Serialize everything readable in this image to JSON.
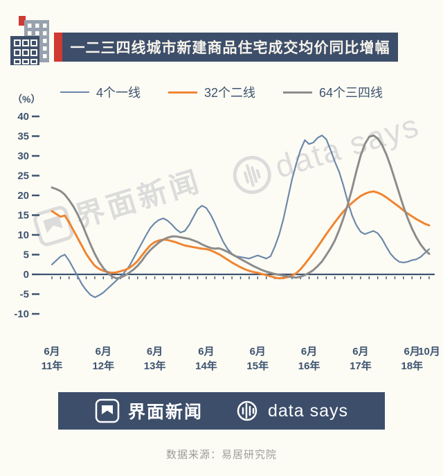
{
  "palette": {
    "background": "#fdfcf4",
    "navy": "#3d4e6a",
    "red": "#cf3a32",
    "axis": "#3d5370",
    "watermark": "#dcdcdc",
    "source_text": "#9b9b9b"
  },
  "header": {
    "title": "一二三四线城市新建商品住宅成交均价同比增幅"
  },
  "legend": [
    {
      "label": "4个一线",
      "color": "#6b88ab"
    },
    {
      "label": "32个二线",
      "color": "#ef8532"
    },
    {
      "label": "64个三四线",
      "color": "#8c8c8c"
    }
  ],
  "watermarks": {
    "jiemian": "界面新闻",
    "datasays": "data says"
  },
  "footer": {
    "brand": "界面新闻",
    "datasays": "data says"
  },
  "source": {
    "text": "数据来源：易居研究院"
  },
  "chart_data": {
    "type": "line",
    "title": "一二三四线城市新建商品住宅成交均价同比增幅",
    "unit_label": "（%）",
    "ylabel": "（%）",
    "ylim": [
      -10,
      40
    ],
    "ytick_step": 5,
    "x_unit": "months since Jun-2011",
    "x_ticks": [
      {
        "month": 0,
        "line1": "6月",
        "line2": "11年"
      },
      {
        "month": 12,
        "line1": "6月",
        "line2": "12年"
      },
      {
        "month": 24,
        "line1": "6月",
        "line2": "13年"
      },
      {
        "month": 36,
        "line1": "6月",
        "line2": "14年"
      },
      {
        "month": 48,
        "line1": "6月",
        "line2": "15年"
      },
      {
        "month": 60,
        "line1": "6月",
        "line2": "16年"
      },
      {
        "month": 72,
        "line1": "6月",
        "line2": "17年"
      },
      {
        "month": 84,
        "line1": "6月",
        "line2": "18年"
      },
      {
        "month": 88,
        "line1": "10月",
        "line2": ""
      }
    ],
    "series": [
      {
        "name": "4个一线",
        "color": "#6b88ab",
        "stroke_width": 2.2,
        "points": [
          [
            0,
            2.5
          ],
          [
            1,
            3.5
          ],
          [
            2,
            4.5
          ],
          [
            3,
            5
          ],
          [
            4,
            3.5
          ],
          [
            5,
            1.5
          ],
          [
            6,
            -0.5
          ],
          [
            7,
            -2.5
          ],
          [
            8,
            -4
          ],
          [
            9,
            -5.2
          ],
          [
            10,
            -5.8
          ],
          [
            11,
            -5.3
          ],
          [
            12,
            -4.6
          ],
          [
            13,
            -3.6
          ],
          [
            14,
            -2.6
          ],
          [
            15,
            -1.6
          ],
          [
            16,
            -0.6
          ],
          [
            17,
            0.6
          ],
          [
            18,
            2
          ],
          [
            19,
            4
          ],
          [
            20,
            6
          ],
          [
            21,
            8
          ],
          [
            22,
            10
          ],
          [
            23,
            11.8
          ],
          [
            24,
            13
          ],
          [
            25,
            13.8
          ],
          [
            26,
            14.2
          ],
          [
            27,
            13.6
          ],
          [
            28,
            12.6
          ],
          [
            29,
            11.4
          ],
          [
            30,
            10.6
          ],
          [
            31,
            11
          ],
          [
            32,
            12.5
          ],
          [
            33,
            14.5
          ],
          [
            34,
            16.5
          ],
          [
            35,
            17.4
          ],
          [
            36,
            16.8
          ],
          [
            37,
            15.2
          ],
          [
            38,
            13
          ],
          [
            39,
            10.5
          ],
          [
            40,
            8.2
          ],
          [
            41,
            6.4
          ],
          [
            42,
            5.2
          ],
          [
            43,
            4.6
          ],
          [
            44,
            4.4
          ],
          [
            45,
            4.2
          ],
          [
            46,
            4
          ],
          [
            47,
            4.4
          ],
          [
            48,
            4.8
          ],
          [
            49,
            4.4
          ],
          [
            50,
            4
          ],
          [
            51,
            4.6
          ],
          [
            52,
            7
          ],
          [
            53,
            10
          ],
          [
            54,
            14
          ],
          [
            55,
            19
          ],
          [
            56,
            24
          ],
          [
            57,
            28
          ],
          [
            58,
            31.5
          ],
          [
            59,
            34
          ],
          [
            60,
            33
          ],
          [
            61,
            33.4
          ],
          [
            62,
            34.6
          ],
          [
            63,
            35.2
          ],
          [
            64,
            34.2
          ],
          [
            65,
            31.5
          ],
          [
            66,
            28.5
          ],
          [
            67,
            26
          ],
          [
            68,
            22.5
          ],
          [
            69,
            18.5
          ],
          [
            70,
            15
          ],
          [
            71,
            12.5
          ],
          [
            72,
            10.8
          ],
          [
            73,
            10.2
          ],
          [
            74,
            10.6
          ],
          [
            75,
            11
          ],
          [
            76,
            10.4
          ],
          [
            77,
            9
          ],
          [
            78,
            7
          ],
          [
            79,
            5.2
          ],
          [
            80,
            4
          ],
          [
            81,
            3.2
          ],
          [
            82,
            3
          ],
          [
            83,
            3.2
          ],
          [
            84,
            3.6
          ],
          [
            85,
            3.8
          ],
          [
            86,
            4.4
          ],
          [
            87,
            5.4
          ],
          [
            88,
            6.4
          ]
        ]
      },
      {
        "name": "32个二线",
        "color": "#ef8532",
        "stroke_width": 3,
        "points": [
          [
            0,
            16
          ],
          [
            1,
            15.3
          ],
          [
            2,
            14.6
          ],
          [
            3,
            14.9
          ],
          [
            4,
            13.2
          ],
          [
            5,
            11.2
          ],
          [
            6,
            9.2
          ],
          [
            7,
            7.2
          ],
          [
            8,
            5.2
          ],
          [
            9,
            3.6
          ],
          [
            10,
            2.2
          ],
          [
            11,
            1.4
          ],
          [
            12,
            0.9
          ],
          [
            13,
            0.6
          ],
          [
            14,
            0.4
          ],
          [
            15,
            0.5
          ],
          [
            16,
            0.8
          ],
          [
            17,
            1.1
          ],
          [
            18,
            1.6
          ],
          [
            19,
            2.4
          ],
          [
            20,
            3.4
          ],
          [
            21,
            4.8
          ],
          [
            22,
            6.2
          ],
          [
            23,
            7.4
          ],
          [
            24,
            8.2
          ],
          [
            25,
            8.6
          ],
          [
            26,
            8.8
          ],
          [
            27,
            8.7
          ],
          [
            28,
            8.4
          ],
          [
            29,
            8.1
          ],
          [
            30,
            7.7
          ],
          [
            31,
            7.3
          ],
          [
            32,
            7.1
          ],
          [
            33,
            6.9
          ],
          [
            34,
            6.7
          ],
          [
            35,
            6.5
          ],
          [
            36,
            6.4
          ],
          [
            37,
            6.1
          ],
          [
            38,
            5.6
          ],
          [
            39,
            5.1
          ],
          [
            40,
            4.4
          ],
          [
            41,
            3.7
          ],
          [
            42,
            3
          ],
          [
            43,
            2.4
          ],
          [
            44,
            1.8
          ],
          [
            45,
            1.3
          ],
          [
            46,
            0.9
          ],
          [
            47,
            0.6
          ],
          [
            48,
            0.4
          ],
          [
            49,
            0.1
          ],
          [
            50,
            -0.2
          ],
          [
            51,
            -0.5
          ],
          [
            52,
            -0.8
          ],
          [
            53,
            -1
          ],
          [
            54,
            -0.9
          ],
          [
            55,
            -0.7
          ],
          [
            56,
            -0.3
          ],
          [
            57,
            0.3
          ],
          [
            58,
            1.3
          ],
          [
            59,
            2.6
          ],
          [
            60,
            4
          ],
          [
            61,
            5.5
          ],
          [
            62,
            7
          ],
          [
            63,
            8.6
          ],
          [
            64,
            10.2
          ],
          [
            65,
            11.7
          ],
          [
            66,
            13.2
          ],
          [
            67,
            14.6
          ],
          [
            68,
            15.9
          ],
          [
            69,
            17.1
          ],
          [
            70,
            18.1
          ],
          [
            71,
            19
          ],
          [
            72,
            19.8
          ],
          [
            73,
            20.4
          ],
          [
            74,
            20.8
          ],
          [
            75,
            21
          ],
          [
            76,
            20.7
          ],
          [
            77,
            20.2
          ],
          [
            78,
            19.5
          ],
          [
            79,
            18.7
          ],
          [
            80,
            17.9
          ],
          [
            81,
            17.1
          ],
          [
            82,
            16.2
          ],
          [
            83,
            15.4
          ],
          [
            84,
            14.7
          ],
          [
            85,
            14
          ],
          [
            86,
            13.4
          ],
          [
            87,
            12.8
          ],
          [
            88,
            12.4
          ]
        ]
      },
      {
        "name": "64个三四线",
        "color": "#8c8c8c",
        "stroke_width": 3,
        "points": [
          [
            0,
            22
          ],
          [
            1,
            21.6
          ],
          [
            2,
            21.1
          ],
          [
            3,
            20.2
          ],
          [
            4,
            18.8
          ],
          [
            5,
            17.2
          ],
          [
            6,
            15.2
          ],
          [
            7,
            12.8
          ],
          [
            8,
            10.2
          ],
          [
            9,
            7.6
          ],
          [
            10,
            5.2
          ],
          [
            11,
            3.2
          ],
          [
            12,
            1.6
          ],
          [
            13,
            0.4
          ],
          [
            14,
            -0.5
          ],
          [
            15,
            -1
          ],
          [
            16,
            -0.8
          ],
          [
            17,
            -0.3
          ],
          [
            18,
            0.4
          ],
          [
            19,
            1.2
          ],
          [
            20,
            2.2
          ],
          [
            21,
            3.5
          ],
          [
            22,
            5
          ],
          [
            23,
            6.2
          ],
          [
            24,
            7.2
          ],
          [
            25,
            8.1
          ],
          [
            26,
            8.8
          ],
          [
            27,
            9.3
          ],
          [
            28,
            9.6
          ],
          [
            29,
            9.6
          ],
          [
            30,
            9.4
          ],
          [
            31,
            9.2
          ],
          [
            32,
            9
          ],
          [
            33,
            8.6
          ],
          [
            34,
            8.2
          ],
          [
            35,
            7.6
          ],
          [
            36,
            7.1
          ],
          [
            37,
            6.7
          ],
          [
            38,
            6.5
          ],
          [
            39,
            6.6
          ],
          [
            40,
            6.2
          ],
          [
            41,
            5.7
          ],
          [
            42,
            5.1
          ],
          [
            43,
            4.5
          ],
          [
            44,
            3.9
          ],
          [
            45,
            3.3
          ],
          [
            46,
            2.7
          ],
          [
            47,
            2.1
          ],
          [
            48,
            1.6
          ],
          [
            49,
            1.1
          ],
          [
            50,
            0.7
          ],
          [
            51,
            0.4
          ],
          [
            52,
            0.1
          ],
          [
            53,
            -0.1
          ],
          [
            54,
            -0.3
          ],
          [
            55,
            -0.5
          ],
          [
            56,
            -0.7
          ],
          [
            57,
            -0.8
          ],
          [
            58,
            -0.6
          ],
          [
            59,
            -0.2
          ],
          [
            60,
            0.4
          ],
          [
            61,
            1.1
          ],
          [
            62,
            2.1
          ],
          [
            63,
            3.3
          ],
          [
            64,
            4.9
          ],
          [
            65,
            6.6
          ],
          [
            66,
            8.6
          ],
          [
            67,
            11.2
          ],
          [
            68,
            14.2
          ],
          [
            69,
            17.6
          ],
          [
            70,
            21.6
          ],
          [
            71,
            26
          ],
          [
            72,
            30
          ],
          [
            73,
            33
          ],
          [
            74,
            34.8
          ],
          [
            75,
            35.2
          ],
          [
            76,
            34.4
          ],
          [
            77,
            32.8
          ],
          [
            78,
            30.4
          ],
          [
            79,
            27.4
          ],
          [
            80,
            24
          ],
          [
            81,
            20.6
          ],
          [
            82,
            17.2
          ],
          [
            83,
            14.2
          ],
          [
            84,
            11.6
          ],
          [
            85,
            9.4
          ],
          [
            86,
            7.6
          ],
          [
            87,
            6.2
          ],
          [
            88,
            5.2
          ]
        ]
      }
    ]
  }
}
